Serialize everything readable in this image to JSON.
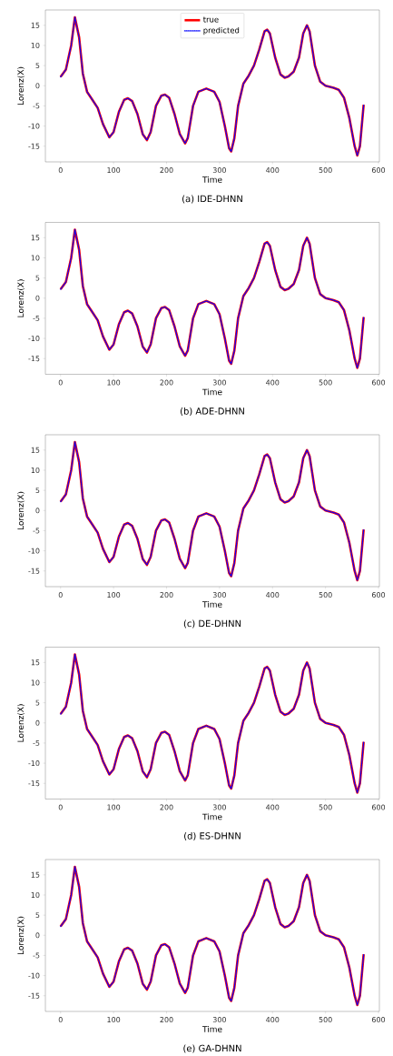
{
  "chart_data": [
    {
      "type": "line",
      "title": "(a) IDE-DHNN",
      "xlabel": "Time",
      "ylabel": "Lorenz(X)",
      "xlim": [
        -28.7,
        601.7
      ],
      "ylim": [
        -18.9,
        18.8
      ],
      "xticks": [
        0,
        100,
        200,
        300,
        400,
        500,
        600
      ],
      "yticks": [
        -15,
        -10,
        -5,
        0,
        5,
        10,
        15
      ],
      "legend": "top",
      "grid": false,
      "x": [
        0,
        10,
        20,
        27,
        35,
        42,
        50,
        60,
        70,
        80,
        92,
        100,
        110,
        120,
        127,
        135,
        145,
        155,
        163,
        170,
        180,
        190,
        197,
        205,
        215,
        225,
        235,
        240,
        250,
        260,
        275,
        290,
        300,
        310,
        318,
        322,
        328,
        335,
        345,
        355,
        365,
        375,
        385,
        390,
        395,
        405,
        415,
        423,
        430,
        440,
        450,
        458,
        465,
        470,
        480,
        490,
        500,
        515,
        525,
        535,
        545,
        555,
        560,
        565,
        572
      ],
      "series": [
        {
          "name": "true",
          "color": "#ff0000",
          "line_style": "solid",
          "values": [
            2.2,
            4,
            10,
            17,
            12,
            3,
            -1.5,
            -3.5,
            -5.5,
            -9.5,
            -12.8,
            -11.5,
            -6.5,
            -3.5,
            -3.1,
            -3.8,
            -7,
            -12,
            -13.5,
            -11.5,
            -5,
            -2.5,
            -2.2,
            -3,
            -7,
            -12,
            -14.3,
            -13,
            -5,
            -1.5,
            -0.7,
            -1.5,
            -4,
            -10,
            -15.5,
            -16.3,
            -13,
            -5,
            0.5,
            2.5,
            5,
            9,
            13.5,
            13.9,
            13,
            7,
            2.8,
            2,
            2.3,
            3.5,
            7,
            13,
            15,
            13.5,
            5,
            1,
            0,
            -0.5,
            -1,
            -3,
            -8,
            -15,
            -17.3,
            -15,
            -4.7
          ]
        },
        {
          "name": "predicted",
          "color": "#0000ff",
          "line_style": "dotted",
          "values": [
            2.2,
            4,
            10,
            17,
            12,
            3,
            -1.5,
            -3.5,
            -5.5,
            -9.5,
            -12.8,
            -11.5,
            -6.5,
            -3.5,
            -3.1,
            -3.8,
            -7,
            -12,
            -13.5,
            -11.5,
            -5,
            -2.5,
            -2.2,
            -3,
            -7,
            -12,
            -14.3,
            -13,
            -5,
            -1.5,
            -0.7,
            -1.5,
            -4,
            -10,
            -15.5,
            -16.3,
            -13,
            -5,
            0.5,
            2.5,
            5,
            9,
            13.5,
            13.9,
            13,
            7,
            2.8,
            2,
            2.3,
            3.5,
            7,
            13,
            15,
            13.5,
            5,
            1,
            0,
            -0.5,
            -1,
            -3,
            -8,
            -15,
            -17.3,
            -15,
            -4.7
          ]
        }
      ]
    },
    {
      "type": "line",
      "title": "(b) ADE-DHNN",
      "xlabel": "Time",
      "ylabel": "Lorenz(X)",
      "xlim": [
        -28.7,
        601.7
      ],
      "ylim": [
        -18.9,
        18.8
      ],
      "xticks": [
        0,
        100,
        200,
        300,
        400,
        500,
        600
      ],
      "yticks": [
        -15,
        -10,
        -5,
        0,
        5,
        10,
        15
      ],
      "grid": false,
      "x": [
        0,
        10,
        20,
        27,
        35,
        42,
        50,
        60,
        70,
        80,
        92,
        100,
        110,
        120,
        127,
        135,
        145,
        155,
        163,
        170,
        180,
        190,
        197,
        205,
        215,
        225,
        235,
        240,
        250,
        260,
        275,
        290,
        300,
        310,
        318,
        322,
        328,
        335,
        345,
        355,
        365,
        375,
        385,
        390,
        395,
        405,
        415,
        423,
        430,
        440,
        450,
        458,
        465,
        470,
        480,
        490,
        500,
        515,
        525,
        535,
        545,
        555,
        560,
        565,
        572
      ],
      "series": [
        {
          "color": "#ff0000",
          "line_style": "solid",
          "values": [
            2.2,
            4,
            10,
            17,
            12,
            3,
            -1.5,
            -3.5,
            -5.5,
            -9.5,
            -12.8,
            -11.5,
            -6.5,
            -3.5,
            -3.1,
            -3.8,
            -7,
            -12,
            -13.5,
            -11.5,
            -5,
            -2.5,
            -2.2,
            -3,
            -7,
            -12,
            -14.3,
            -13,
            -5,
            -1.5,
            -0.7,
            -1.5,
            -4,
            -10,
            -15.5,
            -16.3,
            -13,
            -5,
            0.5,
            2.5,
            5,
            9,
            13.5,
            13.9,
            13,
            7,
            2.8,
            2,
            2.3,
            3.5,
            7,
            13,
            15,
            13.5,
            5,
            1,
            0,
            -0.5,
            -1,
            -3,
            -8,
            -15,
            -17.3,
            -15,
            -4.7
          ]
        },
        {
          "color": "#0000ff",
          "line_style": "dotted",
          "values": [
            2.2,
            4,
            10,
            17,
            12,
            3,
            -1.5,
            -3.5,
            -5.5,
            -9.5,
            -12.8,
            -11.5,
            -6.5,
            -3.5,
            -3.1,
            -3.8,
            -7,
            -12,
            -13.5,
            -11.5,
            -5,
            -2.5,
            -2.2,
            -3,
            -7,
            -12,
            -14.3,
            -13,
            -5,
            -1.5,
            -0.7,
            -1.5,
            -4,
            -10,
            -15.5,
            -16.3,
            -13,
            -5,
            0.5,
            2.5,
            5,
            9,
            13.5,
            13.9,
            13,
            7,
            2.8,
            2,
            2.3,
            3.5,
            7,
            13,
            15,
            13.5,
            5,
            1,
            0,
            -0.5,
            -1,
            -3,
            -8,
            -15,
            -17.3,
            -15,
            -4.7
          ]
        }
      ]
    },
    {
      "type": "line",
      "title": "(c) DE-DHNN",
      "xlabel": "Time",
      "ylabel": "Lorenz(X)",
      "xlim": [
        -28.7,
        601.7
      ],
      "ylim": [
        -18.9,
        18.8
      ],
      "xticks": [
        0,
        100,
        200,
        300,
        400,
        500,
        600
      ],
      "yticks": [
        -15,
        -10,
        -5,
        0,
        5,
        10,
        15
      ],
      "grid": false,
      "x": [
        0,
        10,
        20,
        27,
        35,
        42,
        50,
        60,
        70,
        80,
        92,
        100,
        110,
        120,
        127,
        135,
        145,
        155,
        163,
        170,
        180,
        190,
        197,
        205,
        215,
        225,
        235,
        240,
        250,
        260,
        275,
        290,
        300,
        310,
        318,
        322,
        328,
        335,
        345,
        355,
        365,
        375,
        385,
        390,
        395,
        405,
        415,
        423,
        430,
        440,
        450,
        458,
        465,
        470,
        480,
        490,
        500,
        515,
        525,
        535,
        545,
        555,
        560,
        565,
        572
      ],
      "series": [
        {
          "color": "#ff0000",
          "line_style": "solid",
          "values": [
            2.2,
            4,
            10,
            17,
            12,
            3,
            -1.5,
            -3.5,
            -5.5,
            -9.5,
            -12.8,
            -11.5,
            -6.5,
            -3.5,
            -3.1,
            -3.8,
            -7,
            -12,
            -13.5,
            -11.5,
            -5,
            -2.5,
            -2.2,
            -3,
            -7,
            -12,
            -14.3,
            -13,
            -5,
            -1.5,
            -0.7,
            -1.5,
            -4,
            -10,
            -15.5,
            -16.3,
            -13,
            -5,
            0.5,
            2.5,
            5,
            9,
            13.5,
            13.9,
            13,
            7,
            2.8,
            2,
            2.3,
            3.5,
            7,
            13,
            15,
            13.5,
            5,
            1,
            0,
            -0.5,
            -1,
            -3,
            -8,
            -15,
            -17.3,
            -15,
            -4.7
          ]
        },
        {
          "color": "#0000ff",
          "line_style": "dotted",
          "values": [
            2.2,
            4,
            10,
            17,
            12,
            3,
            -1.5,
            -3.5,
            -5.5,
            -9.5,
            -12.8,
            -11.5,
            -6.5,
            -3.5,
            -3.1,
            -3.8,
            -7,
            -12,
            -13.5,
            -11.5,
            -5,
            -2.5,
            -2.2,
            -3,
            -7,
            -12,
            -14.3,
            -13,
            -5,
            -1.5,
            -0.7,
            -1.5,
            -4,
            -10,
            -15.5,
            -16.3,
            -13,
            -5,
            0.5,
            2.5,
            5,
            9,
            13.5,
            13.9,
            13,
            7,
            2.8,
            2,
            2.3,
            3.5,
            7,
            13,
            15,
            13.5,
            5,
            1,
            0,
            -0.5,
            -1,
            -3,
            -8,
            -15,
            -17.3,
            -15,
            -4.7
          ]
        }
      ]
    },
    {
      "type": "line",
      "title": "(d) ES-DHNN",
      "xlabel": "Time",
      "ylabel": "Lorenz(X)",
      "xlim": [
        -28.7,
        601.7
      ],
      "ylim": [
        -18.9,
        18.8
      ],
      "xticks": [
        0,
        100,
        200,
        300,
        400,
        500,
        600
      ],
      "yticks": [
        -15,
        -10,
        -5,
        0,
        5,
        10,
        15
      ],
      "grid": false,
      "x": [
        0,
        10,
        20,
        27,
        35,
        42,
        50,
        60,
        70,
        80,
        92,
        100,
        110,
        120,
        127,
        135,
        145,
        155,
        163,
        170,
        180,
        190,
        197,
        205,
        215,
        225,
        235,
        240,
        250,
        260,
        275,
        290,
        300,
        310,
        318,
        322,
        328,
        335,
        345,
        355,
        365,
        375,
        385,
        390,
        395,
        405,
        415,
        423,
        430,
        440,
        450,
        458,
        465,
        470,
        480,
        490,
        500,
        515,
        525,
        535,
        545,
        555,
        560,
        565,
        572
      ],
      "series": [
        {
          "color": "#ff0000",
          "line_style": "solid",
          "values": [
            2.2,
            4,
            10,
            17,
            12,
            3,
            -1.5,
            -3.5,
            -5.5,
            -9.5,
            -12.8,
            -11.5,
            -6.5,
            -3.5,
            -3.1,
            -3.8,
            -7,
            -12,
            -13.5,
            -11.5,
            -5,
            -2.5,
            -2.2,
            -3,
            -7,
            -12,
            -14.3,
            -13,
            -5,
            -1.5,
            -0.7,
            -1.5,
            -4,
            -10,
            -15.5,
            -16.3,
            -13,
            -5,
            0.5,
            2.5,
            5,
            9,
            13.5,
            13.9,
            13,
            7,
            2.8,
            2,
            2.3,
            3.5,
            7,
            13,
            15,
            13.5,
            5,
            1,
            0,
            -0.5,
            -1,
            -3,
            -8,
            -15,
            -17.3,
            -15,
            -4.7
          ]
        },
        {
          "color": "#0000ff",
          "line_style": "dotted",
          "values": [
            2.2,
            4,
            10,
            17,
            12,
            3,
            -1.5,
            -3.5,
            -5.5,
            -9.5,
            -12.8,
            -11.5,
            -6.5,
            -3.5,
            -3.1,
            -3.8,
            -7,
            -12,
            -13.5,
            -11.5,
            -5,
            -2.5,
            -2.2,
            -3,
            -7,
            -12,
            -14.3,
            -13,
            -5,
            -1.5,
            -0.7,
            -1.5,
            -4,
            -10,
            -15.5,
            -16.3,
            -13,
            -5,
            0.5,
            2.5,
            5,
            9,
            13.5,
            13.9,
            13,
            7,
            2.8,
            2,
            2.3,
            3.5,
            7,
            13,
            15,
            13.5,
            5,
            1,
            0,
            -0.5,
            -1,
            -3,
            -8,
            -15,
            -17.3,
            -15,
            -4.7
          ]
        }
      ]
    },
    {
      "type": "line",
      "title": "(e) GA-DHNN",
      "xlabel": "Time",
      "ylabel": "Lorenz(X)",
      "xlim": [
        -28.7,
        601.7
      ],
      "ylim": [
        -18.9,
        18.8
      ],
      "xticks": [
        0,
        100,
        200,
        300,
        400,
        500,
        600
      ],
      "yticks": [
        -15,
        -10,
        -5,
        0,
        5,
        10,
        15
      ],
      "grid": false,
      "x": [
        0,
        10,
        20,
        27,
        35,
        42,
        50,
        60,
        70,
        80,
        92,
        100,
        110,
        120,
        127,
        135,
        145,
        155,
        163,
        170,
        180,
        190,
        197,
        205,
        215,
        225,
        235,
        240,
        250,
        260,
        275,
        290,
        300,
        310,
        318,
        322,
        328,
        335,
        345,
        355,
        365,
        375,
        385,
        390,
        395,
        405,
        415,
        423,
        430,
        440,
        450,
        458,
        465,
        470,
        480,
        490,
        500,
        515,
        525,
        535,
        545,
        555,
        560,
        565,
        572
      ],
      "series": [
        {
          "color": "#ff0000",
          "line_style": "solid",
          "values": [
            2.2,
            4,
            10,
            17,
            12,
            3,
            -1.5,
            -3.5,
            -5.5,
            -9.5,
            -12.8,
            -11.5,
            -6.5,
            -3.5,
            -3.1,
            -3.8,
            -7,
            -12,
            -13.5,
            -11.5,
            -5,
            -2.5,
            -2.2,
            -3,
            -7,
            -12,
            -14.3,
            -13,
            -5,
            -1.5,
            -0.7,
            -1.5,
            -4,
            -10,
            -15.5,
            -16.3,
            -13,
            -5,
            0.5,
            2.5,
            5,
            9,
            13.5,
            13.9,
            13,
            7,
            2.8,
            2,
            2.3,
            3.5,
            7,
            13,
            15,
            13.5,
            5,
            1,
            0,
            -0.5,
            -1,
            -3,
            -8,
            -15,
            -17.3,
            -15,
            -4.7
          ]
        },
        {
          "color": "#0000ff",
          "line_style": "dotted",
          "values": [
            2.2,
            4,
            10,
            17,
            12,
            3,
            -1.5,
            -3.5,
            -5.5,
            -9.5,
            -12.8,
            -11.5,
            -6.5,
            -3.5,
            -3.1,
            -3.8,
            -7,
            -12,
            -13.5,
            -11.5,
            -5,
            -2.5,
            -2.2,
            -3,
            -7,
            -12,
            -14.3,
            -13,
            -5,
            -1.5,
            -0.7,
            -1.5,
            -4,
            -10,
            -15.5,
            -16.3,
            -13,
            -5,
            0.5,
            2.5,
            5,
            9,
            13.5,
            13.9,
            13,
            7,
            2.8,
            2,
            2.3,
            3.5,
            7,
            13,
            15,
            13.5,
            5,
            1,
            0,
            -0.5,
            -1,
            -3,
            -8,
            -15,
            -17.3,
            -15,
            -4.7
          ]
        }
      ]
    }
  ]
}
